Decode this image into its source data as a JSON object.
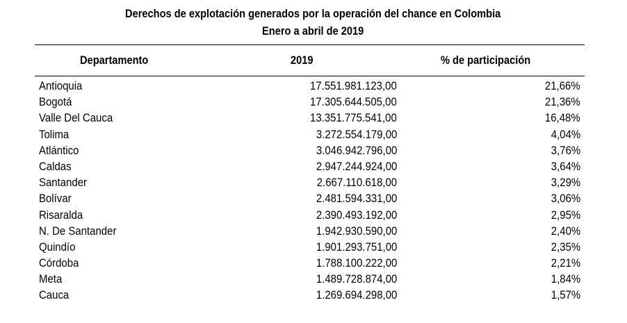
{
  "title_line_1": "Derechos de explotación generados por la operación del chance en Colombia",
  "title_line_2": "Enero a abril de 2019",
  "headers": {
    "department": "Departamento",
    "year": "2019",
    "share": "% de participación"
  },
  "rows": [
    {
      "department": "Antioquia",
      "value": "17.551.981.123,00",
      "share": "21,66%"
    },
    {
      "department": "Bogotá",
      "value": "17.305.644.505,00",
      "share": "21,36%"
    },
    {
      "department": "Valle Del Cauca",
      "value": "13.351.775.541,00",
      "share": "16,48%"
    },
    {
      "department": "Tolima",
      "value": "3.272.554.179,00",
      "share": "4,04%"
    },
    {
      "department": "Atlántico",
      "value": "3.046.942.796,00",
      "share": "3,76%"
    },
    {
      "department": "Caldas",
      "value": "2.947.244.924,00",
      "share": "3,64%"
    },
    {
      "department": "Santander",
      "value": "2.667.110.618,00",
      "share": "3,29%"
    },
    {
      "department": "Bolívar",
      "value": "2.481.594.331,00",
      "share": "3,06%"
    },
    {
      "department": "Risaralda",
      "value": "2.390.493.192,00",
      "share": "2,95%"
    },
    {
      "department": "N. De Santander",
      "value": "1.942.930.590,00",
      "share": "2,40%"
    },
    {
      "department": "Quindío",
      "value": "1.901.293.751,00",
      "share": "2,35%"
    },
    {
      "department": "Córdoba",
      "value": "1.788.100.222,00",
      "share": "2,21%"
    },
    {
      "department": "Meta",
      "value": "1.489.728.874,00",
      "share": "1,84%"
    },
    {
      "department": "Cauca",
      "value": "1.269.694.298,00",
      "share": "1,57%"
    }
  ]
}
